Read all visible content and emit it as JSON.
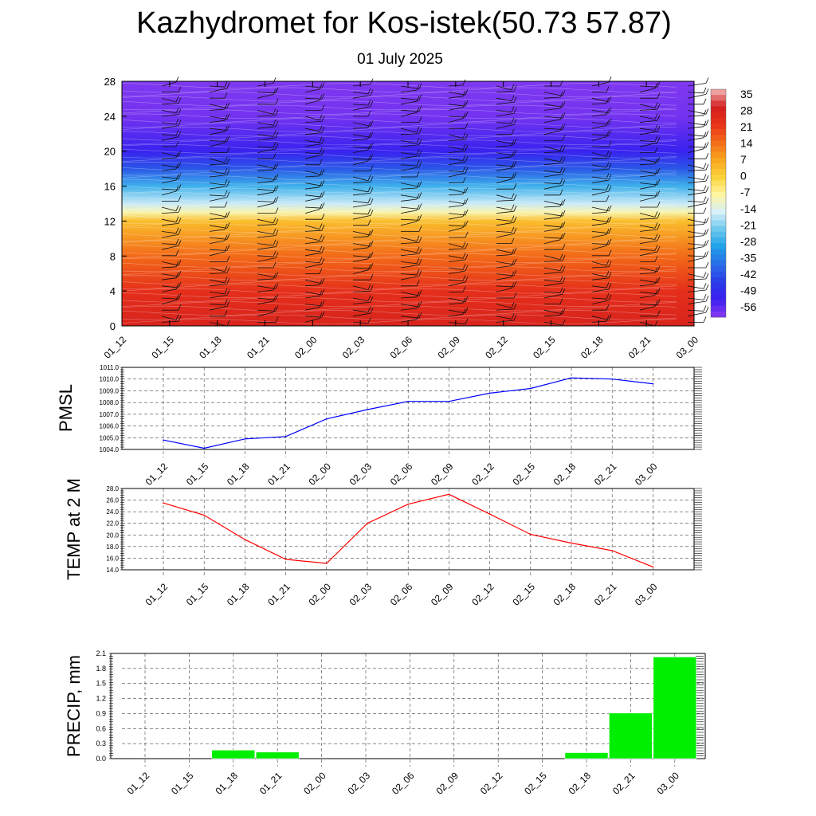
{
  "header": {
    "title": "Kazhydromet for Kos-istek(50.73 57.87)",
    "date": "01 July 2025"
  },
  "time_labels": [
    "01_12",
    "01_15",
    "01_18",
    "01_21",
    "02_00",
    "02_03",
    "02_06",
    "02_09",
    "02_12",
    "02_15",
    "02_18",
    "02_21",
    "03_00"
  ],
  "chart_data": [
    {
      "type": "heatmap",
      "title": "",
      "xlabel": "",
      "ylabel": "",
      "x": [
        "01_12",
        "01_15",
        "01_18",
        "01_21",
        "02_00",
        "02_03",
        "02_06",
        "02_09",
        "02_12",
        "02_15",
        "02_18",
        "02_21",
        "03_00"
      ],
      "yticks": [
        0,
        4,
        8,
        12,
        16,
        20,
        24,
        28
      ],
      "ylim": [
        0,
        28
      ],
      "colorbar_labels": [
        "35",
        "28",
        "21",
        "14",
        "7",
        "0",
        "-7",
        "-14",
        "-21",
        "-28",
        "-35",
        "-42",
        "-49",
        "-56"
      ],
      "colorbar_stops": [
        {
          "value": 35,
          "color": "#f4b8b8"
        },
        {
          "value": 28,
          "color": "#d21e1e"
        },
        {
          "value": 21,
          "color": "#e8321a"
        },
        {
          "value": 14,
          "color": "#f36a18"
        },
        {
          "value": 7,
          "color": "#f9a41e"
        },
        {
          "value": 0,
          "color": "#fbd238"
        },
        {
          "value": -7,
          "color": "#fff5a0"
        },
        {
          "value": -14,
          "color": "#d8f0f8"
        },
        {
          "value": -21,
          "color": "#6cc8ef"
        },
        {
          "value": -28,
          "color": "#1ea0e8"
        },
        {
          "value": -35,
          "color": "#2a6ce8"
        },
        {
          "value": -42,
          "color": "#2a3ce8"
        },
        {
          "value": -49,
          "color": "#3c1ef0"
        },
        {
          "value": -56,
          "color": "#8a3cf0"
        }
      ],
      "level_temperature": [
        {
          "level": 0,
          "value": 26
        },
        {
          "level": 4,
          "value": 22
        },
        {
          "level": 8,
          "value": 14
        },
        {
          "level": 12,
          "value": 3
        },
        {
          "level": 13,
          "value": -8
        },
        {
          "level": 14,
          "value": -15
        },
        {
          "level": 16,
          "value": -25
        },
        {
          "level": 18,
          "value": -38
        },
        {
          "level": 20,
          "value": -48
        },
        {
          "level": 24,
          "value": -54
        },
        {
          "level": 28,
          "value": -55
        }
      ],
      "overlay": "wind barbs"
    },
    {
      "type": "line",
      "title": "",
      "xlabel": "",
      "ylabel": "PMSL",
      "x": [
        "01_12",
        "01_15",
        "01_18",
        "01_21",
        "02_00",
        "02_03",
        "02_06",
        "02_09",
        "02_12",
        "02_15",
        "02_18",
        "02_21",
        "03_00"
      ],
      "series": [
        {
          "values": [
            1004.8,
            1004.1,
            1004.9,
            1005.1,
            1006.6,
            1007.4,
            1008.1,
            1008.1,
            1008.8,
            1009.2,
            1010.1,
            1010.0,
            1009.6
          ]
        }
      ],
      "ylim": [
        1004.0,
        1011.0
      ],
      "yticks": [
        "1004.0",
        "1005.0",
        "1006.0",
        "1007.0",
        "1008.0",
        "1009.0",
        "1010.0",
        "1011.0"
      ],
      "color": "#0000ff",
      "grid": true
    },
    {
      "type": "line",
      "title": "",
      "xlabel": "",
      "ylabel": "TEMP at 2 M",
      "x": [
        "01_12",
        "01_15",
        "01_18",
        "01_21",
        "02_00",
        "02_03",
        "02_06",
        "02_09",
        "02_12",
        "02_15",
        "02_18",
        "02_21",
        "03_00"
      ],
      "series": [
        {
          "values": [
            25.5,
            23.4,
            19.2,
            15.8,
            15.1,
            22.0,
            25.3,
            27.0,
            23.6,
            20.1,
            18.6,
            17.3,
            14.5
          ]
        }
      ],
      "ylim": [
        14.0,
        28.0
      ],
      "yticks": [
        "14.0",
        "16.0",
        "18.0",
        "20.0",
        "22.0",
        "24.0",
        "26.0",
        "28.0"
      ],
      "color": "#ff0000",
      "grid": true
    },
    {
      "type": "bar",
      "title": "",
      "xlabel": "",
      "ylabel": "PRECIP, mm",
      "categories": [
        "01_12",
        "01_15",
        "01_18",
        "01_21",
        "02_00",
        "02_03",
        "02_06",
        "02_09",
        "02_12",
        "02_15",
        "02_18",
        "02_21",
        "03_00"
      ],
      "values": [
        0,
        0,
        0.17,
        0.13,
        0,
        0,
        0,
        0,
        0,
        0,
        0.12,
        0.91,
        2.03
      ],
      "ylim": [
        0,
        2.1
      ],
      "yticks": [
        "0.0",
        "0.3",
        "0.6",
        "0.9",
        "1.2",
        "1.5",
        "1.8",
        "2.1"
      ],
      "color": "#00ee00",
      "grid": true
    }
  ]
}
